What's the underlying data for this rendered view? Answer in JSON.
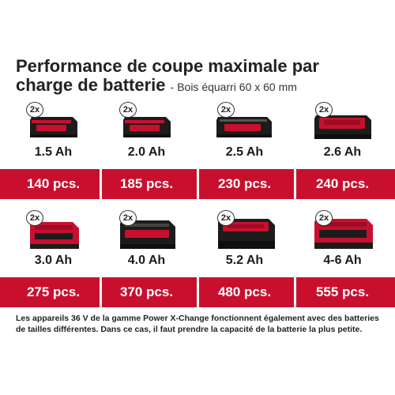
{
  "title": {
    "line1": "Performance de coupe maximale par",
    "line2": "charge de batterie",
    "subtitle": "- Bois équarri 60 x 60 mm"
  },
  "multiplier_label": "2x",
  "batteries": [
    {
      "capacity": "1.5 Ah",
      "pieces": "140 pcs."
    },
    {
      "capacity": "2.0 Ah",
      "pieces": "185 pcs."
    },
    {
      "capacity": "2.5 Ah",
      "pieces": "230 pcs."
    },
    {
      "capacity": "2.6 Ah",
      "pieces": "240 pcs."
    },
    {
      "capacity": "3.0 Ah",
      "pieces": "275 pcs."
    },
    {
      "capacity": "4.0 Ah",
      "pieces": "370 pcs."
    },
    {
      "capacity": "5.2 Ah",
      "pieces": "480 pcs."
    },
    {
      "capacity": "4-6 Ah",
      "pieces": "555 pcs."
    }
  ],
  "footnote": "Les appareils 36 V de la gamme Power X-Change fonctionnent également avec des batteries de tailles différentes. Dans ce cas, il faut prendre la capacité de la batterie la plus petite.",
  "colors": {
    "brand_red": "#c8102e",
    "battery_body": "#1c1c1c",
    "text": "#1a1a1a"
  }
}
